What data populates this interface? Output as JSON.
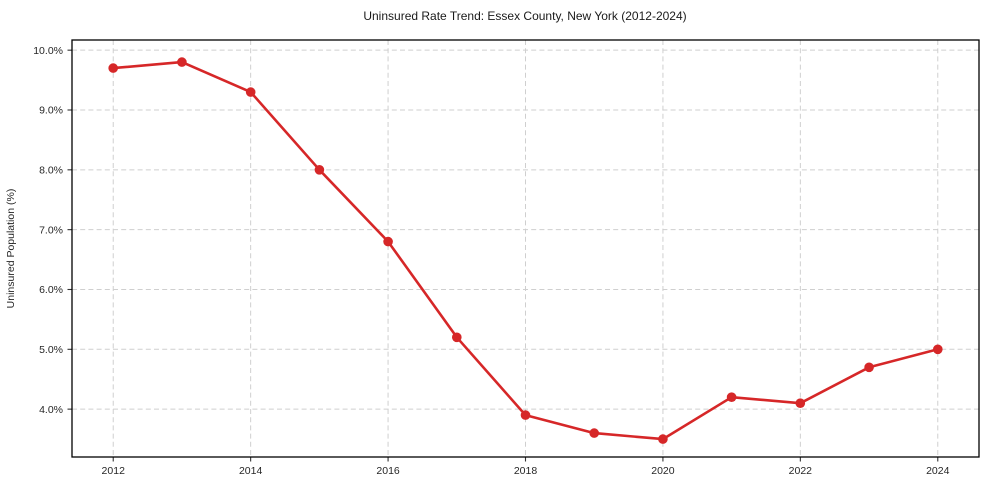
{
  "chart_data": {
    "type": "line",
    "title": "Uninsured Rate Trend: Essex County, New York (2012-2024)",
    "xlabel": "",
    "ylabel": "Uninsured Population (%)",
    "x": [
      2012,
      2013,
      2014,
      2015,
      2016,
      2017,
      2018,
      2019,
      2020,
      2021,
      2022,
      2023,
      2024
    ],
    "values": [
      9.7,
      9.8,
      9.3,
      8.0,
      6.8,
      5.2,
      3.9,
      3.6,
      3.5,
      4.2,
      4.1,
      4.7,
      5.0
    ],
    "x_ticks": [
      2012,
      2014,
      2016,
      2018,
      2020,
      2022,
      2024
    ],
    "x_tick_labels": [
      "2012",
      "2014",
      "2016",
      "2018",
      "2020",
      "2022",
      "2024"
    ],
    "y_ticks": [
      4,
      5,
      6,
      7,
      8,
      9,
      10
    ],
    "y_tick_labels": [
      "4.0%",
      "5.0%",
      "6.0%",
      "7.0%",
      "8.0%",
      "9.0%",
      "10.0%"
    ],
    "xlim": [
      2011.4,
      2024.6
    ],
    "ylim": [
      3.2,
      10.17
    ],
    "grid": true,
    "grid_style": "dashed",
    "legend": false,
    "line_color": "#d62728",
    "marker": "o",
    "marker_color": "#d62728",
    "grid_color": "#cfcfcf",
    "spine_color": "#000000",
    "tick_color": "#333333",
    "background": "#ffffff"
  }
}
